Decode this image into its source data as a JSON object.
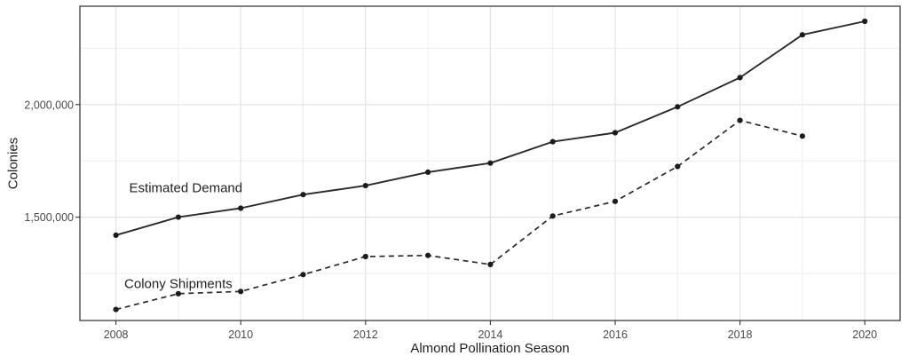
{
  "figure": {
    "background": "#ffffff",
    "panel_border_color": "#3c3c3c",
    "grid_major_color": "#e2e2e2",
    "grid_minor_color": "#eeeeee",
    "tick_mark_color": "#333333",
    "tick_label_color": "#4a4a4a",
    "text_color": "#1f1f1f"
  },
  "chart_data": {
    "type": "line",
    "title": "",
    "xlabel": "Almond Pollination Season",
    "ylabel": "Colonies",
    "x": [
      2008,
      2009,
      2010,
      2011,
      2012,
      2013,
      2014,
      2015,
      2016,
      2017,
      2018,
      2019,
      2020
    ],
    "x_tick_values": [
      2008,
      2010,
      2012,
      2014,
      2016,
      2018,
      2020
    ],
    "x_tick_labels": [
      "2008",
      "2010",
      "2012",
      "2014",
      "2016",
      "2018",
      "2020"
    ],
    "x_minor_values": [
      2009,
      2011,
      2013,
      2015,
      2017,
      2019
    ],
    "y_tick_values": [
      1500000,
      2000000
    ],
    "y_tick_labels": [
      "1,500,000",
      "2,000,000"
    ],
    "y_minor_values": [
      1250000,
      1750000,
      2250000
    ],
    "xlim": [
      2007.42,
      2020.58
    ],
    "ylim": [
      1041000,
      2437000
    ],
    "grid": true,
    "legend_position": "inline-annotations",
    "series": [
      {
        "name": "Estimated Demand",
        "line_style": "solid",
        "color": "#2a2a2a",
        "marker": "filled-circle",
        "values": [
          1420000,
          1500000,
          1540000,
          1600000,
          1640000,
          1700000,
          1740000,
          1835000,
          1875000,
          1990000,
          2120000,
          2310000,
          2370000
        ]
      },
      {
        "name": "Colony Shipments",
        "line_style": "dashed",
        "color": "#2a2a2a",
        "marker": "filled-circle",
        "values": [
          1090000,
          1160000,
          1170000,
          1245000,
          1325000,
          1330000,
          1290000,
          1505000,
          1570000,
          1725000,
          1930000,
          1860000,
          null
        ]
      }
    ],
    "annotations": [
      {
        "text": "Estimated Demand",
        "x": 2009.12,
        "y": 1627000
      },
      {
        "text": "Colony Shipments",
        "x": 2009.0,
        "y": 1203000
      }
    ]
  }
}
